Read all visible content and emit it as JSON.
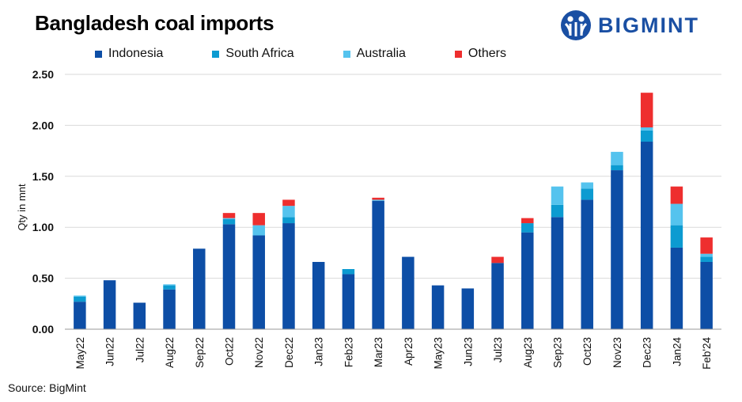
{
  "header": {
    "title": "Bangladesh coal imports",
    "brand": "BIGMINT"
  },
  "footer": {
    "source": "Source: BigMint"
  },
  "colors": {
    "indonesia": "#0d4ea6",
    "south_africa": "#0c9bd1",
    "australia": "#55c3ee",
    "others": "#ee2e2e",
    "brand": "#1a4fa3"
  },
  "chart_data": {
    "type": "bar",
    "stacked": true,
    "title": "Bangladesh coal imports",
    "xlabel": "",
    "ylabel": "Qty in mnt",
    "ylim": [
      0,
      2.5
    ],
    "yticks": [
      "0.00",
      "0.50",
      "1.00",
      "1.50",
      "2.00",
      "2.50"
    ],
    "grid": true,
    "legend_position": "top",
    "categories": [
      "May22",
      "Jun22",
      "Jul22",
      "Aug22",
      "Sep22",
      "Oct22",
      "Nov22",
      "Dec22",
      "Jan23",
      "Feb23",
      "Mar23",
      "Apr23",
      "May23",
      "Jun23",
      "Jul23",
      "Aug23",
      "Sep23",
      "Oct23",
      "Nov23",
      "Dec23",
      "Jan24",
      "Feb'24"
    ],
    "series": [
      {
        "name": "Indonesia",
        "color": "#0d4ea6",
        "values": [
          0.27,
          0.48,
          0.26,
          0.39,
          0.79,
          1.03,
          0.92,
          1.04,
          0.66,
          0.54,
          1.26,
          0.71,
          0.43,
          0.4,
          0.65,
          0.95,
          1.1,
          1.27,
          1.56,
          1.84,
          0.8,
          0.66
        ]
      },
      {
        "name": "South Africa",
        "color": "#0c9bd1",
        "values": [
          0.05,
          0,
          0,
          0.04,
          0,
          0.05,
          0,
          0.06,
          0,
          0.05,
          0,
          0,
          0,
          0,
          0,
          0.09,
          0.12,
          0.11,
          0.05,
          0.11,
          0.22,
          0.05
        ]
      },
      {
        "name": "Australia",
        "color": "#55c3ee",
        "values": [
          0.01,
          0,
          0,
          0.01,
          0,
          0.01,
          0.1,
          0.11,
          0,
          0,
          0.01,
          0,
          0,
          0,
          0,
          0,
          0.18,
          0.06,
          0.13,
          0.03,
          0.21,
          0.03
        ]
      },
      {
        "name": "Others",
        "color": "#ee2e2e",
        "values": [
          0,
          0,
          0,
          0,
          0,
          0.05,
          0.12,
          0.06,
          0,
          0,
          0.02,
          0,
          0,
          0,
          0.06,
          0.05,
          0,
          0,
          0,
          0.34,
          0.17,
          0.16
        ]
      }
    ]
  }
}
